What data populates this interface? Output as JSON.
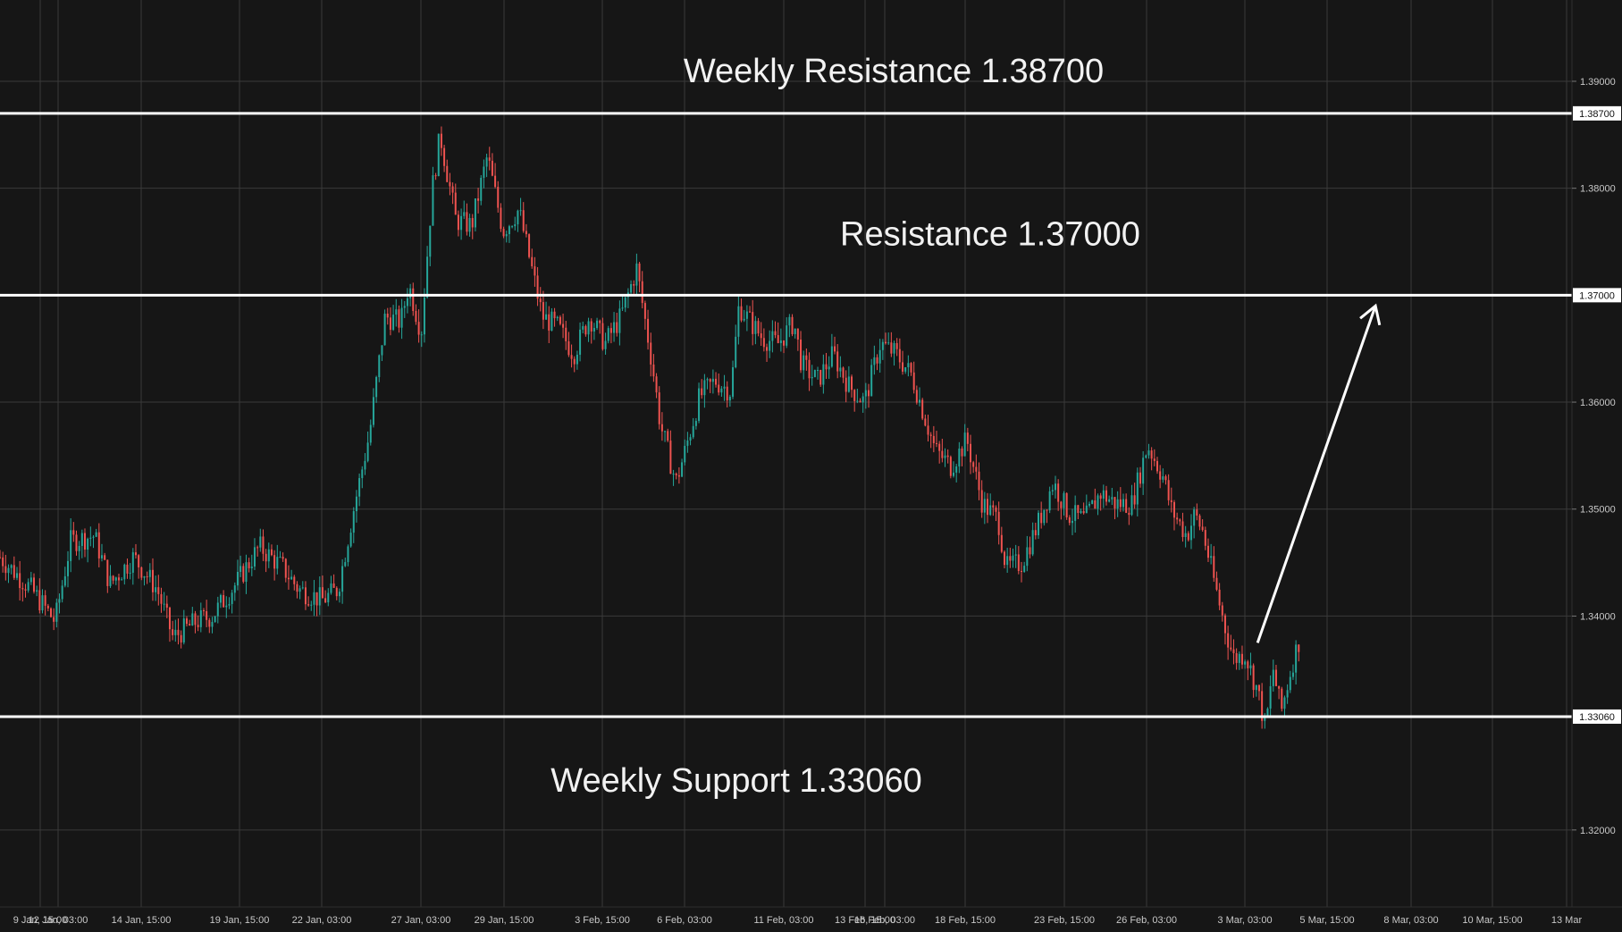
{
  "chart_data": {
    "type": "candlestick",
    "y_ticks": [
      "1.39000",
      "1.38000",
      "1.36000",
      "1.35000",
      "1.34000",
      "1.32000"
    ],
    "y_tick_values": [
      1.39,
      1.38,
      1.36,
      1.35,
      1.34,
      1.32
    ],
    "ylim": [
      1.3128,
      1.3976
    ],
    "x_ticks": [
      "9 Jan, 15:00",
      "12 Jan, 03:00",
      "14 Jan, 15:00",
      "19 Jan, 15:00",
      "22 Jan, 03:00",
      "27 Jan, 03:00",
      "29 Jan, 15:00",
      "3 Feb, 15:00",
      "6 Feb, 03:00",
      "11 Feb, 03:00",
      "13 Feb, 15:00",
      "16 Feb, 03:00",
      "18 Feb, 15:00",
      "23 Feb, 15:00",
      "26 Feb, 03:00",
      "3 Mar, 03:00",
      "5 Mar, 15:00",
      "8 Mar, 03:00",
      "10 Mar, 15:00",
      "13 Mar"
    ],
    "levels": [
      {
        "label": "Weekly Resistance 1.38700",
        "value": 1.387,
        "tag": "1.38700"
      },
      {
        "label": "Resistance 1.37000",
        "value": 1.37,
        "tag": "1.37000"
      },
      {
        "label": "Weekly Support 1.33060",
        "value": 1.3306,
        "tag": "1.33060"
      }
    ],
    "arrow": {
      "from": [
        0.8,
        1.3375
      ],
      "to": [
        0.875,
        1.369
      ]
    },
    "colors": {
      "up": "#26a69a",
      "down": "#ef5350",
      "grid": "#3a3a3a",
      "level": "#ffffff",
      "background": "#161616"
    },
    "price_path": [
      [
        0.0,
        1.3455
      ],
      [
        0.02,
        1.3425
      ],
      [
        0.035,
        1.3395
      ],
      [
        0.045,
        1.347
      ],
      [
        0.06,
        1.3475
      ],
      [
        0.07,
        1.343
      ],
      [
        0.085,
        1.3455
      ],
      [
        0.1,
        1.3425
      ],
      [
        0.11,
        1.338
      ],
      [
        0.125,
        1.3395
      ],
      [
        0.135,
        1.34
      ],
      [
        0.15,
        1.343
      ],
      [
        0.165,
        1.3465
      ],
      [
        0.18,
        1.3445
      ],
      [
        0.19,
        1.3425
      ],
      [
        0.205,
        1.3415
      ],
      [
        0.215,
        1.3425
      ],
      [
        0.225,
        1.35
      ],
      [
        0.235,
        1.357
      ],
      [
        0.245,
        1.368
      ],
      [
        0.255,
        1.3675
      ],
      [
        0.26,
        1.371
      ],
      [
        0.268,
        1.3665
      ],
      [
        0.275,
        1.38
      ],
      [
        0.28,
        1.385
      ],
      [
        0.29,
        1.377
      ],
      [
        0.3,
        1.3765
      ],
      [
        0.31,
        1.383
      ],
      [
        0.32,
        1.376
      ],
      [
        0.33,
        1.378
      ],
      [
        0.345,
        1.368
      ],
      [
        0.355,
        1.367
      ],
      [
        0.365,
        1.3645
      ],
      [
        0.375,
        1.368
      ],
      [
        0.385,
        1.3655
      ],
      [
        0.395,
        1.368
      ],
      [
        0.405,
        1.3725
      ],
      [
        0.415,
        1.3635
      ],
      [
        0.42,
        1.358
      ],
      [
        0.43,
        1.3525
      ],
      [
        0.435,
        1.355
      ],
      [
        0.445,
        1.3605
      ],
      [
        0.455,
        1.362
      ],
      [
        0.465,
        1.361
      ],
      [
        0.47,
        1.369
      ],
      [
        0.485,
        1.366
      ],
      [
        0.495,
        1.3655
      ],
      [
        0.505,
        1.3675
      ],
      [
        0.51,
        1.3635
      ],
      [
        0.52,
        1.362
      ],
      [
        0.53,
        1.3645
      ],
      [
        0.54,
        1.3615
      ],
      [
        0.55,
        1.36
      ],
      [
        0.56,
        1.3655
      ],
      [
        0.57,
        1.3645
      ],
      [
        0.58,
        1.3625
      ],
      [
        0.595,
        1.3555
      ],
      [
        0.605,
        1.354
      ],
      [
        0.615,
        1.3565
      ],
      [
        0.625,
        1.3505
      ],
      [
        0.635,
        1.349
      ],
      [
        0.64,
        1.3445
      ],
      [
        0.65,
        1.345
      ],
      [
        0.66,
        1.3485
      ],
      [
        0.67,
        1.3525
      ],
      [
        0.68,
        1.3495
      ],
      [
        0.69,
        1.349
      ],
      [
        0.7,
        1.3515
      ],
      [
        0.71,
        1.3505
      ],
      [
        0.72,
        1.3505
      ],
      [
        0.73,
        1.356
      ],
      [
        0.74,
        1.353
      ],
      [
        0.745,
        1.35
      ],
      [
        0.755,
        1.3475
      ],
      [
        0.76,
        1.3495
      ],
      [
        0.765,
        1.348
      ],
      [
        0.772,
        1.3435
      ],
      [
        0.78,
        1.3385
      ],
      [
        0.785,
        1.336
      ],
      [
        0.792,
        1.3365
      ],
      [
        0.8,
        1.333
      ],
      [
        0.805,
        1.3295
      ],
      [
        0.81,
        1.335
      ],
      [
        0.815,
        1.331
      ],
      [
        0.822,
        1.3355
      ],
      [
        0.828,
        1.3385
      ]
    ]
  }
}
